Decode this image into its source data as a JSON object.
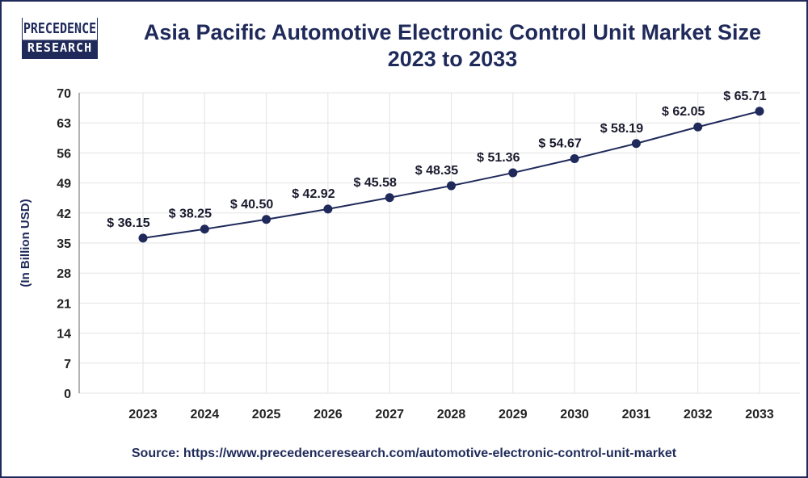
{
  "brand": {
    "logo_line1": "PRECEDENCE",
    "logo_line2": "RESEARCH"
  },
  "title_line1": "Asia Pacific Automotive Electronic Control Unit Market Size",
  "title_line2": "2023 to 2033",
  "source": "Source: https://www.precedenceresearch.com/automotive-electronic-control-unit-market",
  "colors": {
    "line": "#1f2a5a",
    "text": "#1f2a5a",
    "grid": "#e3e3e3"
  },
  "chart_data": {
    "type": "line",
    "title": "Asia Pacific Automotive Electronic Control Unit Market Size 2023 to 2033",
    "xlabel": "",
    "ylabel": "(In Billion USD)",
    "categories": [
      "2023",
      "2024",
      "2025",
      "2026",
      "2027",
      "2028",
      "2029",
      "2030",
      "2031",
      "2032",
      "2033"
    ],
    "values": [
      36.15,
      38.25,
      40.5,
      42.92,
      45.58,
      48.35,
      51.36,
      54.67,
      58.19,
      62.05,
      65.71
    ],
    "data_labels": [
      "$ 36.15",
      "$ 38.25",
      "$ 40.50",
      "$ 42.92",
      "$ 45.58",
      "$ 48.35",
      "$ 51.36",
      "$ 54.67",
      "$ 58.19",
      "$ 62.05",
      "$ 65.71"
    ],
    "yticks": [
      0,
      7,
      14,
      21,
      28,
      35,
      42,
      49,
      56,
      63,
      70
    ],
    "ylim": [
      0,
      70
    ],
    "grid": true,
    "legend": "none"
  }
}
